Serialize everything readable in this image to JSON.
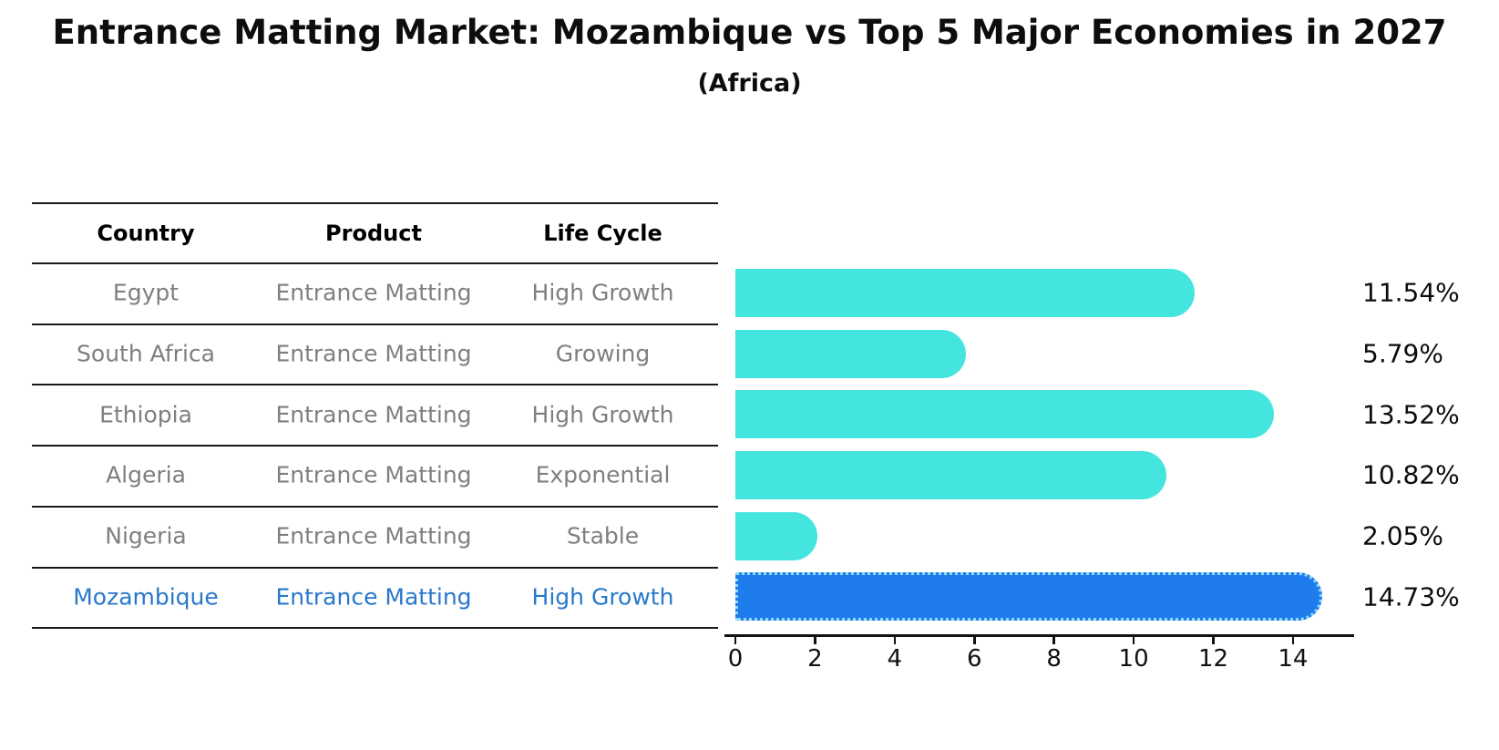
{
  "title": "Entrance Matting Market: Mozambique vs Top 5 Major Economies in 2027",
  "subtitle": "(Africa)",
  "table": {
    "headers": [
      "Country",
      "Product",
      "Life Cycle"
    ]
  },
  "rows": [
    {
      "country": "Egypt",
      "product": "Entrance Matting",
      "life_cycle": "High Growth",
      "value": 11.54,
      "label": "11.54%",
      "highlight": false
    },
    {
      "country": "South Africa",
      "product": "Entrance Matting",
      "life_cycle": "Growing",
      "value": 5.79,
      "label": "5.79%",
      "highlight": false
    },
    {
      "country": "Ethiopia",
      "product": "Entrance Matting",
      "life_cycle": "High Growth",
      "value": 13.52,
      "label": "13.52%",
      "highlight": false
    },
    {
      "country": "Algeria",
      "product": "Entrance Matting",
      "life_cycle": "Exponential",
      "value": 10.82,
      "label": "10.82%",
      "highlight": false
    },
    {
      "country": "Nigeria",
      "product": "Entrance Matting",
      "life_cycle": "Stable",
      "value": 2.05,
      "label": "2.05%",
      "highlight": false
    },
    {
      "country": "Mozambique",
      "product": "Entrance Matting",
      "life_cycle": "High Growth",
      "value": 14.73,
      "label": "14.73%",
      "highlight": true
    }
  ],
  "chart_data": {
    "type": "bar",
    "orientation": "horizontal",
    "title": "Entrance Matting Market: Mozambique vs Top 5 Major Economies in 2027",
    "subtitle": "(Africa)",
    "categories": [
      "Egypt",
      "South Africa",
      "Ethiopia",
      "Algeria",
      "Nigeria",
      "Mozambique"
    ],
    "values": [
      11.54,
      5.79,
      13.52,
      10.82,
      2.05,
      14.73
    ],
    "data_labels": [
      "11.54%",
      "5.79%",
      "13.52%",
      "10.82%",
      "2.05%",
      "14.73%"
    ],
    "xlabel": "",
    "ylabel": "",
    "xticks": [
      0,
      2,
      4,
      6,
      8,
      10,
      12,
      14
    ],
    "xlim": [
      0,
      15.6
    ],
    "grid": false,
    "legend": "none",
    "bar_color": "#45E5DF",
    "highlight_bar_color": "#1E7CEC",
    "highlight_index": 5,
    "highlight_text_color": "#2878CC"
  },
  "colors": {
    "bar_cyan": "#45E5DF",
    "bar_blue": "#1E7CEC",
    "highlight_text": "#2878CC",
    "table_text": "#7F7F7F",
    "header_text": "#000000",
    "line": "#1A1A1A"
  }
}
